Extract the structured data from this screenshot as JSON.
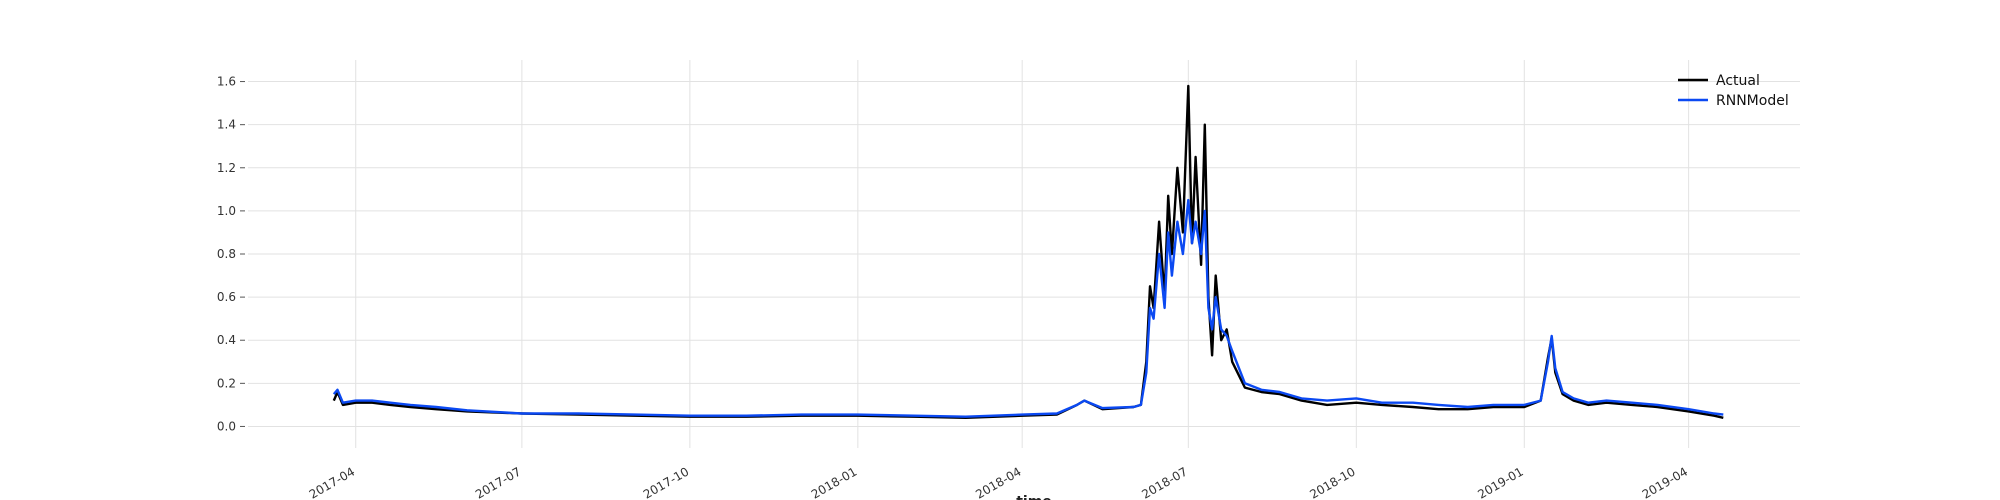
{
  "chart_data": {
    "type": "line",
    "title": "",
    "xlabel": "time",
    "ylabel": "",
    "xlim": [
      "2017-02-01",
      "2019-06-01"
    ],
    "ylim": [
      -0.1,
      1.7
    ],
    "grid": true,
    "legend_position": "top-right",
    "x_ticks": [
      "2017-04",
      "2017-07",
      "2017-10",
      "2018-01",
      "2018-04",
      "2018-07",
      "2018-10",
      "2019-01",
      "2019-04"
    ],
    "y_ticks": [
      "0.0",
      "0.2",
      "0.4",
      "0.6",
      "0.8",
      "1.0",
      "1.2",
      "1.4",
      "1.6"
    ],
    "x": [
      "2017-03-20",
      "2017-03-22",
      "2017-03-25",
      "2017-04-01",
      "2017-04-10",
      "2017-04-20",
      "2017-05-01",
      "2017-05-15",
      "2017-06-01",
      "2017-07-01",
      "2017-08-01",
      "2017-09-01",
      "2017-10-01",
      "2017-11-01",
      "2017-12-01",
      "2018-01-01",
      "2018-02-01",
      "2018-03-01",
      "2018-04-01",
      "2018-04-20",
      "2018-05-01",
      "2018-05-05",
      "2018-05-15",
      "2018-06-01",
      "2018-06-05",
      "2018-06-08",
      "2018-06-10",
      "2018-06-12",
      "2018-06-15",
      "2018-06-18",
      "2018-06-20",
      "2018-06-22",
      "2018-06-25",
      "2018-06-28",
      "2018-07-01",
      "2018-07-03",
      "2018-07-05",
      "2018-07-08",
      "2018-07-10",
      "2018-07-12",
      "2018-07-14",
      "2018-07-16",
      "2018-07-19",
      "2018-07-22",
      "2018-07-25",
      "2018-08-01",
      "2018-08-10",
      "2018-08-20",
      "2018-09-01",
      "2018-09-15",
      "2018-10-01",
      "2018-10-15",
      "2018-11-01",
      "2018-11-15",
      "2018-12-01",
      "2018-12-15",
      "2019-01-01",
      "2019-01-10",
      "2019-01-14",
      "2019-01-16",
      "2019-01-18",
      "2019-01-22",
      "2019-01-28",
      "2019-02-05",
      "2019-02-15",
      "2019-03-01",
      "2019-03-15",
      "2019-04-01",
      "2019-04-15",
      "2019-04-20"
    ],
    "series": [
      {
        "name": "Actual",
        "color": "#000000",
        "values": [
          0.12,
          0.16,
          0.1,
          0.11,
          0.11,
          0.1,
          0.09,
          0.08,
          0.07,
          0.06,
          0.055,
          0.05,
          0.045,
          0.045,
          0.05,
          0.05,
          0.045,
          0.04,
          0.05,
          0.055,
          0.1,
          0.12,
          0.08,
          0.09,
          0.1,
          0.3,
          0.65,
          0.55,
          0.95,
          0.6,
          1.07,
          0.8,
          1.2,
          0.9,
          1.58,
          0.85,
          1.25,
          0.75,
          1.4,
          0.6,
          0.33,
          0.7,
          0.4,
          0.45,
          0.3,
          0.18,
          0.16,
          0.15,
          0.12,
          0.1,
          0.11,
          0.1,
          0.09,
          0.08,
          0.08,
          0.09,
          0.09,
          0.12,
          0.32,
          0.41,
          0.25,
          0.15,
          0.12,
          0.1,
          0.11,
          0.1,
          0.09,
          0.07,
          0.05,
          0.04
        ]
      },
      {
        "name": "RNNModel",
        "color": "#0b49f2",
        "values": [
          0.15,
          0.17,
          0.11,
          0.12,
          0.12,
          0.11,
          0.1,
          0.09,
          0.075,
          0.06,
          0.06,
          0.055,
          0.05,
          0.05,
          0.055,
          0.055,
          0.05,
          0.045,
          0.055,
          0.06,
          0.1,
          0.12,
          0.085,
          0.09,
          0.1,
          0.25,
          0.55,
          0.5,
          0.8,
          0.55,
          0.9,
          0.7,
          0.95,
          0.8,
          1.05,
          0.85,
          0.95,
          0.8,
          1.0,
          0.55,
          0.45,
          0.6,
          0.45,
          0.42,
          0.35,
          0.2,
          0.17,
          0.16,
          0.13,
          0.12,
          0.13,
          0.11,
          0.11,
          0.1,
          0.09,
          0.1,
          0.1,
          0.12,
          0.3,
          0.42,
          0.27,
          0.16,
          0.13,
          0.11,
          0.12,
          0.11,
          0.1,
          0.08,
          0.06,
          0.055
        ]
      }
    ]
  }
}
